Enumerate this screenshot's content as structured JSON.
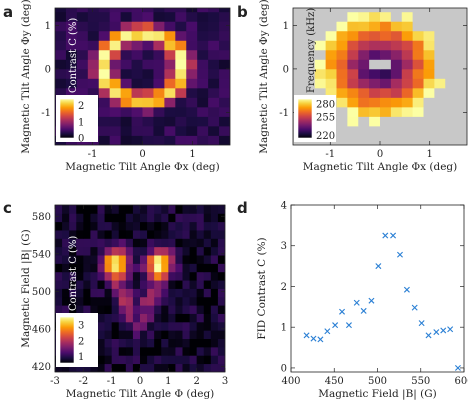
{
  "colors": {
    "heat": [
      "#000004",
      "#1b0c41",
      "#4a0c6b",
      "#781c6d",
      "#a52c60",
      "#cf4446",
      "#ed6925",
      "#fb9b06",
      "#f7d13d",
      "#fcffa4"
    ],
    "missing": "#c8c8c8",
    "marker": "#2a7fd4",
    "frame": "#222222"
  },
  "chart_data": [
    {
      "panel": "a",
      "type": "heatmap",
      "xlabel": "Magnetic Tilt Angle Φx (deg)",
      "ylabel": "Magnetic Tilt Angle Φy (deg)",
      "xlim": [
        -1.75,
        1.75
      ],
      "ylim": [
        -1.75,
        1.4
      ],
      "xticks": [
        "-1",
        "0",
        "1"
      ],
      "xtick_values": [
        -1,
        0,
        1
      ],
      "yticks": [
        "-1",
        "0",
        "1"
      ],
      "ytick_values": [
        -1,
        0,
        1
      ],
      "colorbar": {
        "label": "Contrast C (%)",
        "ticks": [
          "0",
          "1",
          "2"
        ],
        "tick_values": [
          0,
          1,
          2
        ],
        "range": [
          0,
          2.4
        ]
      },
      "grid": {
        "x0": -1.75,
        "dx": 0.21875,
        "nx": 16,
        "y0": -1.75,
        "dy": 0.21875,
        "ny": 15,
        "model": "ring",
        "ring_center": [
          0.0,
          0.05
        ],
        "ring_radius": 0.78,
        "ring_width": 0.2,
        "peak": 2.3,
        "base": 0.35
      }
    },
    {
      "panel": "b",
      "type": "heatmap",
      "xlabel": "Magnetic Tilt Angle Φx (deg)",
      "ylabel": "Magnetic Tilt Angle Φy (deg)",
      "xlim": [
        -1.75,
        1.75
      ],
      "ylim": [
        -1.75,
        1.4
      ],
      "xticks": [
        "-1",
        "0",
        "1"
      ],
      "xtick_values": [
        -1,
        0,
        1
      ],
      "yticks": [
        "-1",
        "0",
        "1"
      ],
      "ytick_values": [
        -1,
        0,
        1
      ],
      "colorbar": {
        "label": "Frequency (kHz)",
        "ticks": [
          "280",
          "255",
          "220"
        ],
        "tick_values": [
          280,
          255,
          220
        ],
        "range": [
          215,
          290
        ]
      },
      "grid": {
        "x0": -1.75,
        "dx": 0.21875,
        "nx": 16,
        "y0": -1.75,
        "dy": 0.21875,
        "ny": 15,
        "model": "radial",
        "center": [
          0.0,
          0.05
        ],
        "valid_radius": 1.25,
        "fmin": 218,
        "fmax": 292
      }
    },
    {
      "panel": "c",
      "type": "heatmap",
      "xlabel": "Magnetic Tilt Angle Φ (deg)",
      "ylabel": "Magnetic Field |B| (G)",
      "xlim": [
        -3,
        3
      ],
      "ylim": [
        414,
        592
      ],
      "xticks": [
        "-3",
        "-2",
        "-1",
        "0",
        "1",
        "2",
        "3"
      ],
      "xtick_values": [
        -3,
        -2,
        -1,
        0,
        1,
        2,
        3
      ],
      "yticks": [
        "420",
        "460",
        "500",
        "540",
        "580"
      ],
      "ytick_values": [
        420,
        460,
        500,
        540,
        580
      ],
      "colorbar": {
        "label": "Contrast C (%)",
        "ticks": [
          "1",
          "2",
          "3"
        ],
        "tick_values": [
          1,
          2,
          3
        ],
        "range": [
          0.6,
          3.5
        ]
      },
      "grid": {
        "x0": -3,
        "dx": 0.25,
        "nx": 24,
        "y0": 414,
        "dy": 8.9,
        "ny": 20,
        "model": "blobs",
        "blobs": [
          [
            -0.9,
            530
          ],
          [
            0.7,
            530
          ]
        ],
        "peak": 3.4,
        "base": 0.8
      }
    },
    {
      "panel": "d",
      "type": "scatter",
      "xlabel": "Magnetic Field |B| (G)",
      "ylabel": "FID Contrast C (%)",
      "xlim": [
        400,
        600
      ],
      "ylim": [
        -0.1,
        4.0
      ],
      "xticks": [
        "400",
        "450",
        "500",
        "550",
        "600"
      ],
      "xtick_values": [
        400,
        450,
        500,
        550,
        600
      ],
      "yticks": [
        "0",
        "1",
        "2",
        "3",
        "4"
      ],
      "ytick_values": [
        0,
        1,
        2,
        3,
        4
      ],
      "x": [
        418,
        426,
        434,
        442,
        451,
        459,
        467,
        476,
        484,
        493,
        501,
        509,
        518,
        526,
        534,
        543,
        551,
        559,
        568,
        576,
        584,
        593
      ],
      "y": [
        0.8,
        0.72,
        0.7,
        0.9,
        1.05,
        1.38,
        1.05,
        1.6,
        1.4,
        1.65,
        2.5,
        3.25,
        3.25,
        2.78,
        1.92,
        1.48,
        1.1,
        0.8,
        0.88,
        0.92,
        0.95,
        0.0
      ]
    }
  ],
  "panels": {
    "a": "a",
    "b": "b",
    "c": "c",
    "d": "d"
  }
}
